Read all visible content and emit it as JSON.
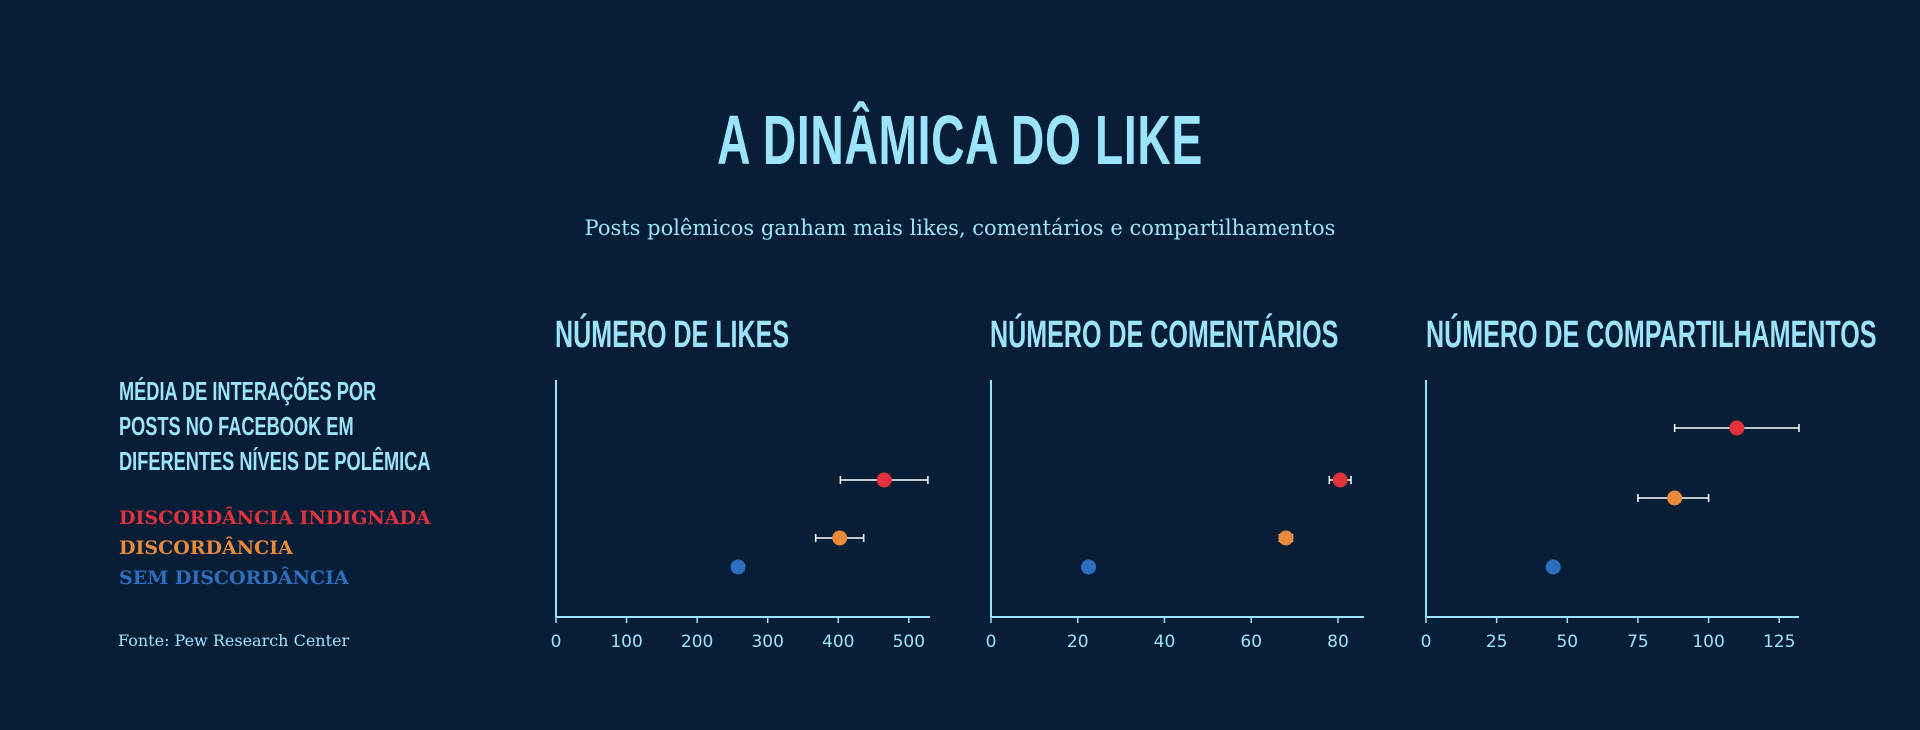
{
  "title": "A DINÂMICA DO LIKE",
  "subtitle": "Posts polêmicos ganham mais likes, comentários e compartilhamentos",
  "left_heading": [
    "MÉDIA DE INTERAÇÕES POR",
    "POSTS NO FACEBOOK EM",
    "DIFERENTES NÍVEIS DE POLÊMICA"
  ],
  "legend": [
    {
      "label": "DISCORDÂNCIA INDIGNADA",
      "color": "#e0313d"
    },
    {
      "label": "DISCORDÂNCIA",
      "color": "#e9893a"
    },
    {
      "label": "SEM DISCORDÂNCIA",
      "color": "#2d6fbe"
    }
  ],
  "source": "Fonte: Pew Research Center",
  "colors": {
    "background": "#081e37",
    "text": "#9be4fb",
    "axis": "#9be4fb",
    "errorbar": "#ffffff"
  },
  "chart_data": [
    {
      "type": "scatter",
      "title": "NÚMERO DE LIKES",
      "xlim": [
        0,
        530
      ],
      "xticks": [
        0,
        100,
        200,
        300,
        400,
        500
      ],
      "points": [
        {
          "series": "DISCORDÂNCIA INDIGNADA",
          "x": 465,
          "err_low": 403,
          "err_high": 527
        },
        {
          "series": "DISCORDÂNCIA",
          "x": 402,
          "err_low": 368,
          "err_high": 436
        },
        {
          "series": "SEM DISCORDÂNCIA",
          "x": 258,
          "err_low": null,
          "err_high": null
        }
      ]
    },
    {
      "type": "scatter",
      "title": "NÚMERO DE COMENTÁRIOS",
      "xlim": [
        0,
        86
      ],
      "xticks": [
        0,
        20,
        40,
        60,
        80
      ],
      "points": [
        {
          "series": "DISCORDÂNCIA INDIGNADA",
          "x": 80.5,
          "err_low": 78,
          "err_high": 83
        },
        {
          "series": "DISCORDÂNCIA",
          "x": 68,
          "err_low": 66.5,
          "err_high": 69.5
        },
        {
          "series": "SEM DISCORDÂNCIA",
          "x": 22.5,
          "err_low": null,
          "err_high": null
        }
      ]
    },
    {
      "type": "scatter",
      "title": "NÚMERO DE COMPARTILHAMENTOS",
      "xlim": [
        0,
        132
      ],
      "xticks": [
        0,
        25,
        50,
        75,
        100,
        125
      ],
      "points": [
        {
          "series": "DISCORDÂNCIA INDIGNADA",
          "x": 110,
          "err_low": 88,
          "err_high": 132
        },
        {
          "series": "DISCORDÂNCIA",
          "x": 88,
          "err_low": 75,
          "err_high": 100
        },
        {
          "series": "SEM DISCORDÂNCIA",
          "x": 45,
          "err_low": null,
          "err_high": null
        }
      ]
    }
  ]
}
